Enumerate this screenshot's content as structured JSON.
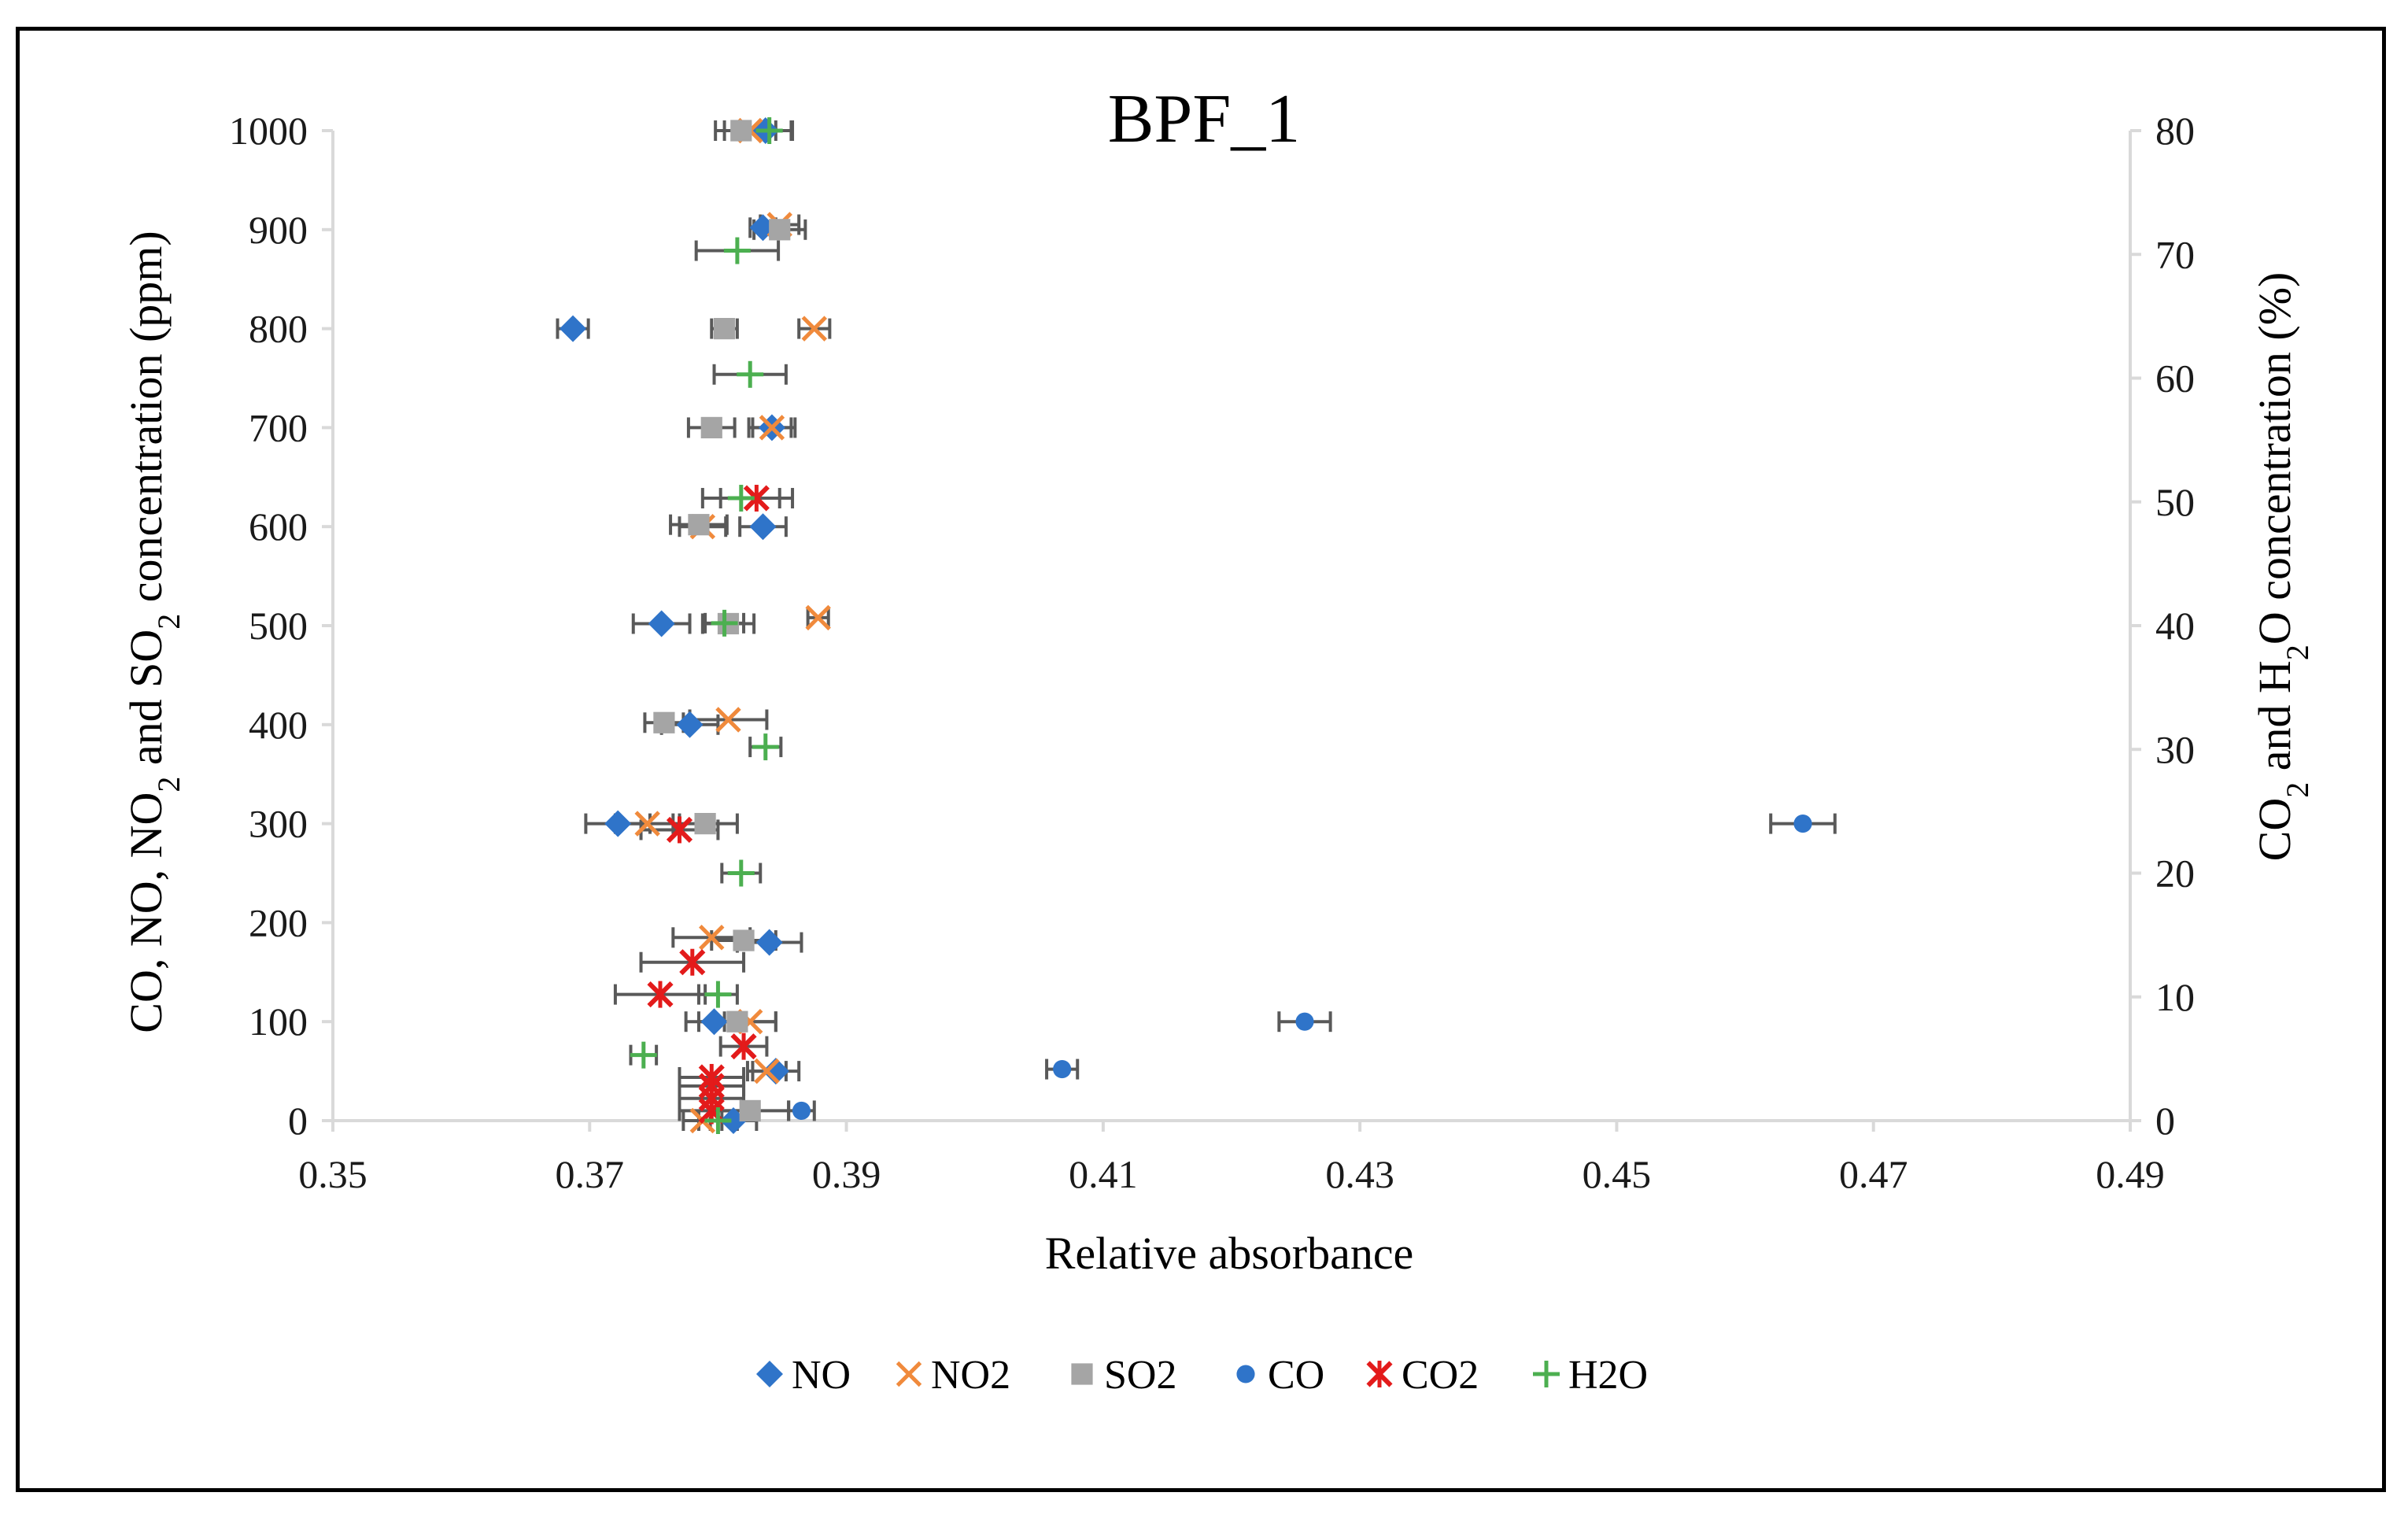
{
  "chart_data": {
    "type": "scatter",
    "title": "BPF_1",
    "xlabel": "Relative absorbance",
    "ylabel_left": "CO, NO, NO2 and SO2 concentration (ppm)",
    "ylabel_left_parts": {
      "a": "CO, NO, NO",
      "b": "2",
      "c": " and SO",
      "d": "2",
      "e": " concentration (ppm)"
    },
    "ylabel_right": "CO2 and H2O concentration (%)",
    "ylabel_right_parts": {
      "a": "CO",
      "b": "2",
      "c": " and H",
      "d": "2",
      "e": "O concentration (%)"
    },
    "xlim": [
      0.35,
      0.49
    ],
    "ylim_left": [
      0,
      1000
    ],
    "ylim_right": [
      0,
      80
    ],
    "x_ticks": [
      "0.35",
      "0.37",
      "0.39",
      "0.41",
      "0.43",
      "0.45",
      "0.47",
      "0.49"
    ],
    "y_ticks_left": [
      "0",
      "100",
      "200",
      "300",
      "400",
      "500",
      "600",
      "700",
      "800",
      "900",
      "1000"
    ],
    "y_ticks_right": [
      "0",
      "10",
      "20",
      "30",
      "40",
      "50",
      "60",
      "70",
      "80"
    ],
    "legend_position": "bottom",
    "series": [
      {
        "name": "NO",
        "axis": "left",
        "marker": "diamond",
        "color": "#2F74C9",
        "points": [
          {
            "x": 0.3812,
            "y": 0,
            "err": 0.0018
          },
          {
            "x": 0.3845,
            "y": 50,
            "err": 0.0018
          },
          {
            "x": 0.3797,
            "y": 100,
            "err": 0.0022
          },
          {
            "x": 0.384,
            "y": 180,
            "err": 0.0025
          },
          {
            "x": 0.3722,
            "y": 300,
            "err": 0.0025
          },
          {
            "x": 0.3778,
            "y": 400,
            "err": 0.0022
          },
          {
            "x": 0.3756,
            "y": 502,
            "err": 0.0022
          },
          {
            "x": 0.3835,
            "y": 600,
            "err": 0.0018
          },
          {
            "x": 0.3842,
            "y": 700,
            "err": 0.0018
          },
          {
            "x": 0.3687,
            "y": 800,
            "err": 0.0012
          },
          {
            "x": 0.3835,
            "y": 902,
            "err": 0.001
          },
          {
            "x": 0.3837,
            "y": 1000,
            "err": 0.002
          }
        ]
      },
      {
        "name": "NO2",
        "axis": "left",
        "marker": "x",
        "color": "#F08A3C",
        "points": [
          {
            "x": 0.3788,
            "y": 0,
            "err": 0.0015
          },
          {
            "x": 0.3838,
            "y": 50,
            "err": 0.0015
          },
          {
            "x": 0.3825,
            "y": 100,
            "err": 0.002
          },
          {
            "x": 0.3795,
            "y": 185,
            "err": 0.003
          },
          {
            "x": 0.3745,
            "y": 300,
            "err": 0.0025
          },
          {
            "x": 0.3808,
            "y": 405,
            "err": 0.003
          },
          {
            "x": 0.3878,
            "y": 508,
            "err": 0.0008
          },
          {
            "x": 0.3788,
            "y": 600,
            "err": 0.0018
          },
          {
            "x": 0.3842,
            "y": 700,
            "err": 0.0015
          },
          {
            "x": 0.3875,
            "y": 800,
            "err": 0.0012
          },
          {
            "x": 0.3848,
            "y": 905,
            "err": 0.0015
          },
          {
            "x": 0.3825,
            "y": 1000,
            "err": 0.002
          }
        ]
      },
      {
        "name": "SO2",
        "axis": "left",
        "marker": "square",
        "color": "#A5A5A5",
        "points": [
          {
            "x": 0.3825,
            "y": 10,
            "err": 0.003
          },
          {
            "x": 0.3815,
            "y": 100,
            "err": 0.003
          },
          {
            "x": 0.382,
            "y": 182,
            "err": 0.0025
          },
          {
            "x": 0.379,
            "y": 300,
            "err": 0.0025
          },
          {
            "x": 0.3758,
            "y": 402,
            "err": 0.0015
          },
          {
            "x": 0.3808,
            "y": 502,
            "err": 0.002
          },
          {
            "x": 0.3785,
            "y": 602,
            "err": 0.0022
          },
          {
            "x": 0.3795,
            "y": 700,
            "err": 0.0018
          },
          {
            "x": 0.3805,
            "y": 800,
            "err": 0.001
          },
          {
            "x": 0.3848,
            "y": 900,
            "err": 0.002
          },
          {
            "x": 0.3818,
            "y": 1000,
            "err": 0.002
          }
        ]
      },
      {
        "name": "CO",
        "axis": "left",
        "marker": "circle",
        "color": "#2F74C9",
        "points": [
          {
            "x": 0.3865,
            "y": 10,
            "err": 0.001
          },
          {
            "x": 0.4068,
            "y": 52,
            "err": 0.0012
          },
          {
            "x": 0.4257,
            "y": 100,
            "err": 0.002
          },
          {
            "x": 0.4645,
            "y": 300,
            "err": 0.0025
          }
        ]
      },
      {
        "name": "CO2",
        "axis": "right",
        "marker": "asterisk",
        "color": "#E31B1B",
        "points": [
          {
            "x": 0.3795,
            "y": 0.8,
            "err": 0.0025
          },
          {
            "x": 0.3795,
            "y": 1.8,
            "err": 0.0025
          },
          {
            "x": 0.3795,
            "y": 2.8,
            "err": 0.0025
          },
          {
            "x": 0.3795,
            "y": 3.5,
            "err": 0.0025
          },
          {
            "x": 0.382,
            "y": 6.0,
            "err": 0.0018
          },
          {
            "x": 0.3755,
            "y": 10.2,
            "err": 0.0035
          },
          {
            "x": 0.378,
            "y": 12.8,
            "err": 0.004
          },
          {
            "x": 0.377,
            "y": 23.5,
            "err": 0.003
          },
          {
            "x": 0.383,
            "y": 50.3,
            "err": 0.0028
          }
        ]
      },
      {
        "name": "H2O",
        "axis": "right",
        "marker": "plus",
        "color": "#4CAF50",
        "points": [
          {
            "x": 0.38,
            "y": 0,
            "err": 0.0015
          },
          {
            "x": 0.3742,
            "y": 5.3,
            "err": 0.001
          },
          {
            "x": 0.38,
            "y": 10.2,
            "err": 0.0015
          },
          {
            "x": 0.3818,
            "y": 20.0,
            "err": 0.0015
          },
          {
            "x": 0.3837,
            "y": 30.2,
            "err": 0.0012
          },
          {
            "x": 0.3805,
            "y": 40.2,
            "err": 0.0015
          },
          {
            "x": 0.3818,
            "y": 50.3,
            "err": 0.003
          },
          {
            "x": 0.3825,
            "y": 60.3,
            "err": 0.0028
          },
          {
            "x": 0.3815,
            "y": 70.3,
            "err": 0.0032
          },
          {
            "x": 0.384,
            "y": 80.0,
            "err": 0.0018
          }
        ]
      }
    ]
  }
}
